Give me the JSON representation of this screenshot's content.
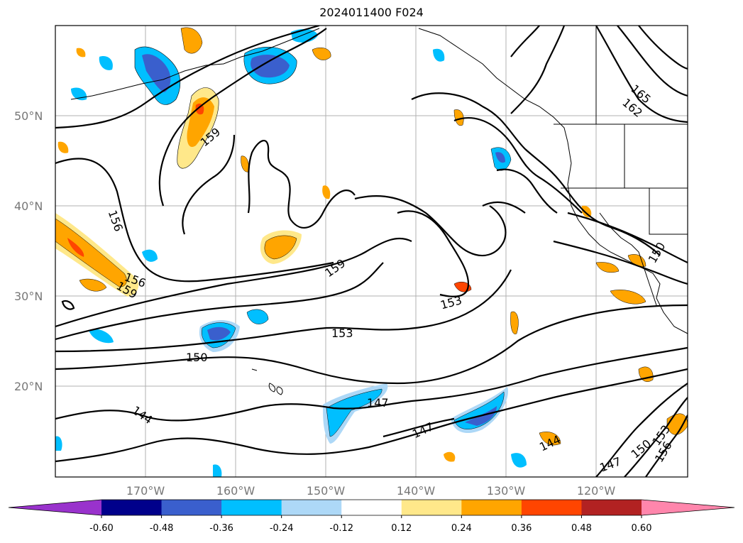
{
  "title": "2024011400 F024",
  "lat_labels": [
    "50°N",
    "40°N",
    "30°N",
    "20°N"
  ],
  "lon_labels": [
    "170°W",
    "160°W",
    "150°W",
    "140°W",
    "130°W",
    "120°W"
  ],
  "contour_labels": [
    "159",
    "156",
    "156",
    "159",
    "159",
    "153",
    "153",
    "150",
    "147",
    "147",
    "144",
    "144",
    "147",
    "150",
    "153",
    "156",
    "162",
    "165",
    "150"
  ],
  "colorbar": {
    "ticks": [
      "-0.60",
      "-0.48",
      "-0.36",
      "-0.24",
      "-0.12",
      "0.12",
      "0.24",
      "0.36",
      "0.48",
      "0.60"
    ],
    "colors": [
      "#9932cc",
      "#00008b",
      "#3a5fcd",
      "#00bfff",
      "#add8f7",
      "#ffffff",
      "#ffe88a",
      "#ffa500",
      "#ff4500",
      "#b22222",
      "#ff86ac"
    ]
  },
  "colors": {
    "grid": "#b0b0b0",
    "axis_label": "#777777"
  }
}
